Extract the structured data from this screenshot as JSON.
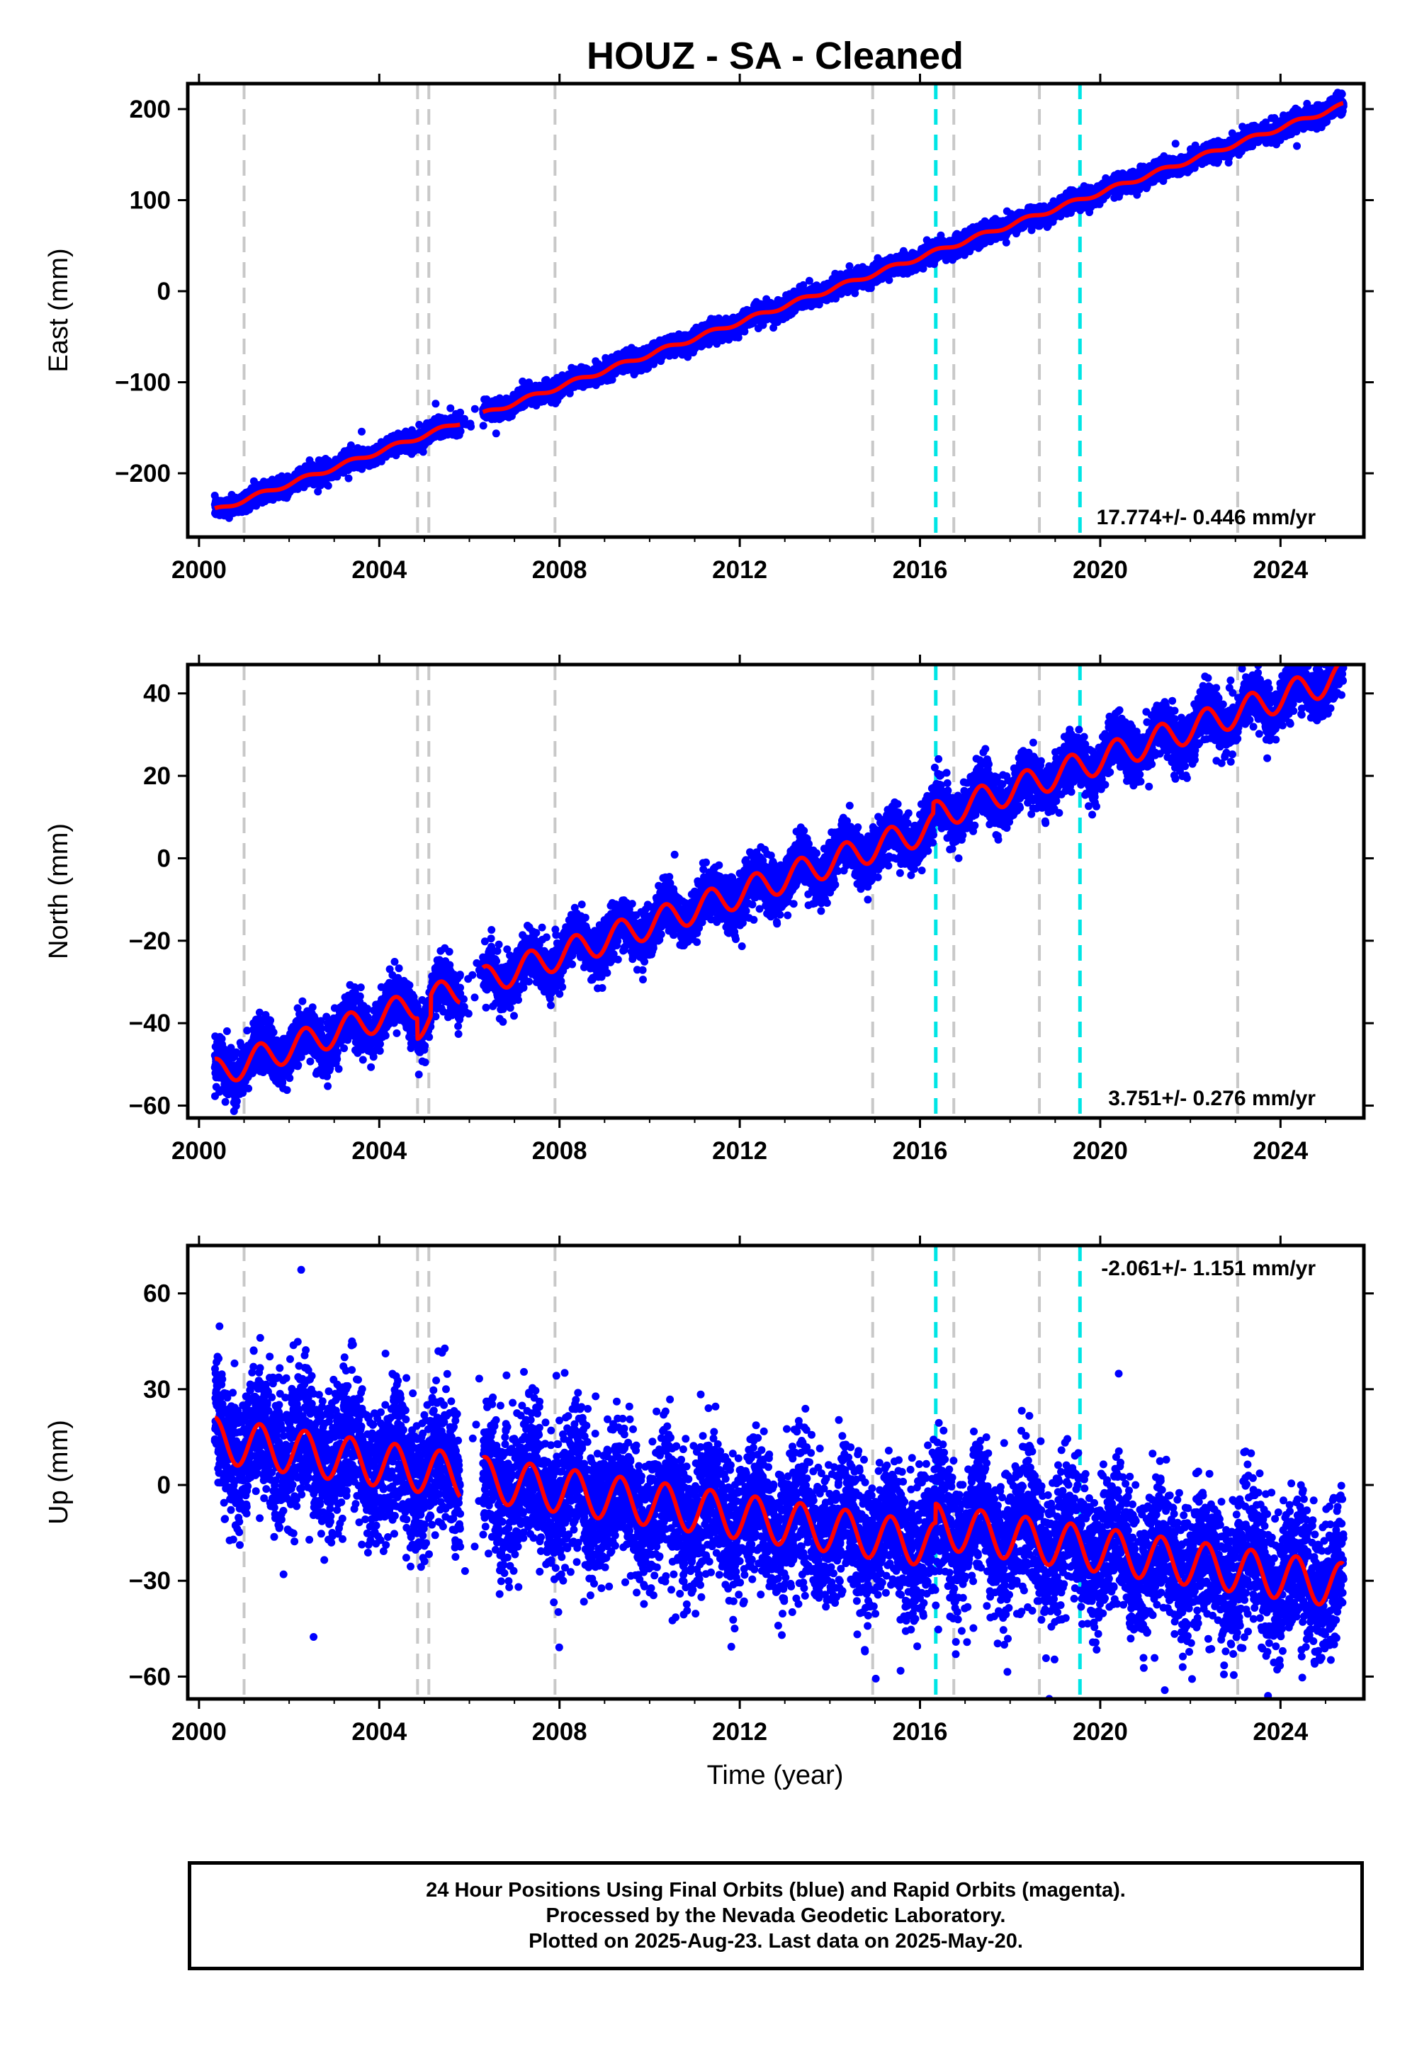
{
  "title": "HOUZ  - SA - Cleaned",
  "xlabel": "Time (year)",
  "footer": {
    "line1": "24 Hour Positions Using Final Orbits (blue) and Rapid Orbits (magenta).",
    "line2": "Processed by the Nevada Geodetic Laboratory.",
    "line3": "Plotted on 2025-Aug-23. Last data on 2025-May-20."
  },
  "colors": {
    "final_orbits": "#0000ff",
    "model": "#ff0000",
    "equipment_change": "#c8c8c8",
    "earthquake": "#00e5e5"
  },
  "chart_data": [
    {
      "type": "scatter",
      "panel": "east",
      "ylabel": "East (mm)",
      "xlim": [
        1999.75,
        2025.85
      ],
      "ylim": [
        -270,
        228
      ],
      "xticks": [
        2000,
        2004,
        2008,
        2012,
        2016,
        2020,
        2024
      ],
      "yticks": [
        -200,
        -100,
        0,
        100,
        200
      ],
      "ytick_labels": [
        "−200",
        "−100",
        "0",
        "100",
        "200"
      ],
      "rate_label": "17.774+/- 0.446 mm/yr",
      "rate_position": "bottom-right",
      "trend": {
        "t0": 2000.4,
        "y0": -240,
        "slope": 17.774,
        "seasonal_amp": 2.5,
        "noise": 5
      },
      "data_span": [
        2000.35,
        2025.4
      ],
      "gaps": [
        [
          2005.8,
          2006.3
        ]
      ],
      "equipment_changes": [
        2001.0,
        2004.85,
        2005.1,
        2007.9,
        2014.95,
        2016.75,
        2018.65,
        2023.05
      ],
      "earthquakes": [
        2016.35,
        2019.55
      ]
    },
    {
      "type": "scatter",
      "panel": "north",
      "ylabel": "North (mm)",
      "xlim": [
        1999.75,
        2025.85
      ],
      "ylim": [
        -63,
        47
      ],
      "xticks": [
        2000,
        2004,
        2008,
        2012,
        2016,
        2020,
        2024
      ],
      "yticks": [
        -60,
        -40,
        -20,
        0,
        20,
        40
      ],
      "ytick_labels": [
        "−60",
        "−40",
        "−20",
        "0",
        "20",
        "40"
      ],
      "rate_label": "3.751+/- 0.276 mm/yr",
      "rate_position": "bottom-right",
      "trend": {
        "t0": 2000.4,
        "y0": -52,
        "slope": 3.751,
        "seasonal_amp": 3.5,
        "noise": 3
      },
      "data_span": [
        2000.35,
        2025.4
      ],
      "gaps": [
        [
          2005.8,
          2006.3
        ]
      ],
      "equipment_changes": [
        2001.0,
        2004.85,
        2005.1,
        2007.9,
        2014.95,
        2016.75,
        2018.65,
        2023.05
      ],
      "earthquakes": [
        2016.35,
        2019.55
      ]
    },
    {
      "type": "scatter",
      "panel": "up",
      "ylabel": "Up (mm)",
      "xlim": [
        1999.75,
        2025.85
      ],
      "ylim": [
        -67,
        75
      ],
      "xticks": [
        2000,
        2004,
        2008,
        2012,
        2016,
        2020,
        2024
      ],
      "yticks": [
        -60,
        -30,
        0,
        30,
        60
      ],
      "ytick_labels": [
        "−60",
        "−30",
        "0",
        "30",
        "60"
      ],
      "rate_label": "-2.061+/- 1.151 mm/yr",
      "rate_position": "top-right",
      "trend": {
        "t0": 2000.4,
        "y0": 14,
        "slope": -2.061,
        "seasonal_amp": 7,
        "noise": 11
      },
      "data_span": [
        2000.35,
        2025.4
      ],
      "gaps": [
        [
          2005.8,
          2006.3
        ]
      ],
      "equipment_changes": [
        2001.0,
        2004.85,
        2005.1,
        2007.9,
        2014.95,
        2016.75,
        2018.65,
        2023.05
      ],
      "earthquakes": [
        2016.35,
        2019.55
      ]
    }
  ]
}
